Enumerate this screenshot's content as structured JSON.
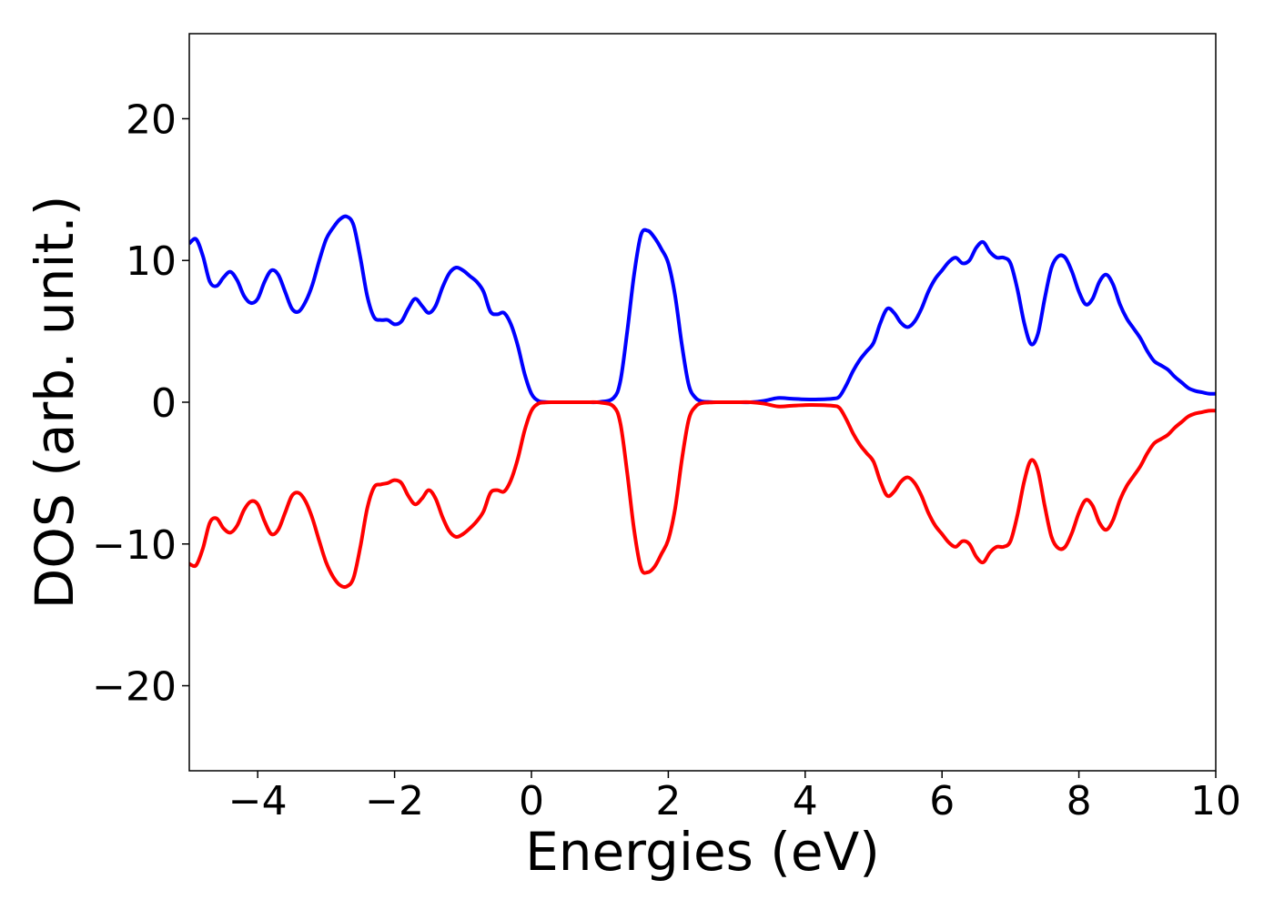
{
  "chart_data": {
    "type": "line",
    "title": "",
    "xlabel": "Energies (eV)",
    "ylabel": "DOS (arb. unit.)",
    "xlim": [
      -5,
      10
    ],
    "ylim": [
      -26,
      26
    ],
    "xticks": [
      -4,
      -2,
      0,
      2,
      4,
      6,
      8,
      10
    ],
    "xtick_labels": [
      "−4",
      "−2",
      "0",
      "2",
      "4",
      "6",
      "8",
      "10"
    ],
    "yticks": [
      -20,
      -10,
      0,
      10,
      20
    ],
    "ytick_labels": [
      "−20",
      "−10",
      "0",
      "10",
      "20"
    ],
    "grid": false,
    "legend": "none",
    "series": [
      {
        "color": "#0000ff",
        "x": [
          -5.0,
          -4.9,
          -4.8,
          -4.7,
          -4.6,
          -4.5,
          -4.4,
          -4.3,
          -4.2,
          -4.1,
          -4.0,
          -3.9,
          -3.8,
          -3.7,
          -3.6,
          -3.5,
          -3.4,
          -3.3,
          -3.2,
          -3.1,
          -3.0,
          -2.9,
          -2.8,
          -2.7,
          -2.6,
          -2.5,
          -2.4,
          -2.3,
          -2.2,
          -2.1,
          -2.0,
          -1.9,
          -1.8,
          -1.7,
          -1.6,
          -1.5,
          -1.4,
          -1.3,
          -1.2,
          -1.1,
          -1.0,
          -0.9,
          -0.8,
          -0.7,
          -0.6,
          -0.5,
          -0.4,
          -0.3,
          -0.2,
          -0.1,
          0.0,
          0.1,
          0.2,
          0.3,
          0.4,
          0.5,
          0.6,
          0.8,
          1.0,
          1.2,
          1.3,
          1.4,
          1.5,
          1.6,
          1.7,
          1.8,
          1.9,
          2.0,
          2.1,
          2.2,
          2.3,
          2.4,
          2.5,
          2.6,
          2.7,
          2.8,
          2.9,
          3.0,
          3.2,
          3.4,
          3.6,
          3.8,
          4.0,
          4.2,
          4.4,
          4.5,
          4.6,
          4.7,
          4.8,
          4.9,
          5.0,
          5.1,
          5.2,
          5.3,
          5.4,
          5.5,
          5.6,
          5.7,
          5.8,
          5.9,
          6.0,
          6.1,
          6.2,
          6.3,
          6.4,
          6.5,
          6.6,
          6.7,
          6.8,
          6.9,
          7.0,
          7.1,
          7.2,
          7.3,
          7.4,
          7.5,
          7.6,
          7.7,
          7.8,
          7.9,
          8.0,
          8.1,
          8.2,
          8.3,
          8.4,
          8.5,
          8.6,
          8.7,
          8.8,
          8.9,
          9.0,
          9.1,
          9.2,
          9.3,
          9.4,
          9.5,
          9.6,
          9.7,
          9.8,
          9.9,
          10.0
        ],
        "y": [
          11.2,
          11.5,
          10.3,
          8.5,
          8.2,
          8.8,
          9.2,
          8.6,
          7.5,
          7.0,
          7.3,
          8.5,
          9.3,
          9.0,
          7.8,
          6.6,
          6.4,
          7.1,
          8.3,
          10.0,
          11.5,
          12.3,
          12.9,
          13.1,
          12.5,
          10.2,
          7.5,
          6.0,
          5.8,
          5.8,
          5.5,
          5.7,
          6.6,
          7.3,
          6.8,
          6.3,
          6.8,
          8.1,
          9.1,
          9.5,
          9.3,
          8.9,
          8.5,
          7.8,
          6.4,
          6.2,
          6.3,
          5.5,
          4.0,
          2.0,
          0.6,
          0.1,
          0.02,
          0.0,
          0.0,
          0.0,
          0.0,
          0.0,
          0.02,
          0.3,
          1.5,
          5.0,
          9.0,
          11.8,
          12.1,
          11.6,
          10.8,
          9.8,
          7.5,
          4.0,
          1.2,
          0.3,
          0.05,
          0.02,
          0.0,
          0.0,
          0.0,
          0.0,
          0.0,
          0.1,
          0.3,
          0.25,
          0.2,
          0.2,
          0.25,
          0.4,
          1.2,
          2.2,
          3.0,
          3.6,
          4.2,
          5.6,
          6.6,
          6.3,
          5.6,
          5.3,
          5.7,
          6.6,
          7.8,
          8.7,
          9.3,
          9.9,
          10.2,
          9.8,
          10.0,
          10.9,
          11.3,
          10.6,
          10.2,
          10.2,
          9.8,
          8.0,
          5.6,
          4.1,
          4.8,
          7.3,
          9.5,
          10.3,
          10.2,
          9.2,
          7.8,
          6.9,
          7.3,
          8.5,
          9.0,
          8.3,
          6.9,
          5.9,
          5.2,
          4.5,
          3.6,
          2.9,
          2.6,
          2.3,
          1.8,
          1.4,
          1.0,
          0.8,
          0.7,
          0.6,
          0.6
        ]
      },
      {
        "color": "#ff0000",
        "x": [
          -5.0,
          -4.9,
          -4.8,
          -4.7,
          -4.6,
          -4.5,
          -4.4,
          -4.3,
          -4.2,
          -4.1,
          -4.0,
          -3.9,
          -3.8,
          -3.7,
          -3.6,
          -3.5,
          -3.4,
          -3.3,
          -3.2,
          -3.1,
          -3.0,
          -2.9,
          -2.8,
          -2.7,
          -2.6,
          -2.5,
          -2.4,
          -2.3,
          -2.2,
          -2.1,
          -2.0,
          -1.9,
          -1.8,
          -1.7,
          -1.6,
          -1.5,
          -1.4,
          -1.3,
          -1.2,
          -1.1,
          -1.0,
          -0.9,
          -0.8,
          -0.7,
          -0.6,
          -0.5,
          -0.4,
          -0.3,
          -0.2,
          -0.1,
          0.0,
          0.1,
          0.2,
          0.3,
          0.4,
          0.5,
          0.6,
          0.8,
          1.0,
          1.2,
          1.3,
          1.4,
          1.5,
          1.6,
          1.7,
          1.8,
          1.9,
          2.0,
          2.1,
          2.2,
          2.3,
          2.4,
          2.5,
          2.6,
          2.7,
          2.8,
          2.9,
          3.0,
          3.2,
          3.4,
          3.6,
          3.8,
          4.0,
          4.2,
          4.4,
          4.5,
          4.6,
          4.7,
          4.8,
          4.9,
          5.0,
          5.1,
          5.2,
          5.3,
          5.4,
          5.5,
          5.6,
          5.7,
          5.8,
          5.9,
          6.0,
          6.1,
          6.2,
          6.3,
          6.4,
          6.5,
          6.6,
          6.7,
          6.8,
          6.9,
          7.0,
          7.1,
          7.2,
          7.3,
          7.4,
          7.5,
          7.6,
          7.7,
          7.8,
          7.9,
          8.0,
          8.1,
          8.2,
          8.3,
          8.4,
          8.5,
          8.6,
          8.7,
          8.8,
          8.9,
          9.0,
          9.1,
          9.2,
          9.3,
          9.4,
          9.5,
          9.6,
          9.7,
          9.8,
          9.9,
          10.0
        ],
        "y": [
          -11.4,
          -11.5,
          -10.3,
          -8.5,
          -8.2,
          -8.9,
          -9.2,
          -8.7,
          -7.6,
          -7.0,
          -7.2,
          -8.4,
          -9.3,
          -9.0,
          -7.8,
          -6.6,
          -6.4,
          -7.0,
          -8.2,
          -9.8,
          -11.3,
          -12.3,
          -12.9,
          -13.0,
          -12.4,
          -10.2,
          -7.5,
          -6.0,
          -5.8,
          -5.7,
          -5.5,
          -5.7,
          -6.6,
          -7.2,
          -6.8,
          -6.2,
          -6.8,
          -8.1,
          -9.1,
          -9.5,
          -9.3,
          -8.9,
          -8.4,
          -7.7,
          -6.4,
          -6.2,
          -6.3,
          -5.5,
          -4.0,
          -2.0,
          -0.6,
          -0.1,
          -0.02,
          0.0,
          0.0,
          0.0,
          0.0,
          0.0,
          -0.02,
          -0.3,
          -1.5,
          -5.0,
          -9.0,
          -11.7,
          -12.0,
          -11.6,
          -10.7,
          -9.7,
          -7.5,
          -4.0,
          -1.2,
          -0.3,
          -0.05,
          -0.02,
          0.0,
          0.0,
          0.0,
          0.0,
          0.0,
          -0.1,
          -0.3,
          -0.25,
          -0.2,
          -0.2,
          -0.25,
          -0.4,
          -1.2,
          -2.2,
          -3.0,
          -3.6,
          -4.2,
          -5.6,
          -6.6,
          -6.3,
          -5.6,
          -5.3,
          -5.7,
          -6.6,
          -7.8,
          -8.7,
          -9.3,
          -9.9,
          -10.2,
          -9.8,
          -10.0,
          -10.9,
          -11.3,
          -10.6,
          -10.2,
          -10.2,
          -9.8,
          -8.0,
          -5.6,
          -4.1,
          -4.8,
          -7.3,
          -9.5,
          -10.3,
          -10.2,
          -9.2,
          -7.8,
          -6.9,
          -7.3,
          -8.5,
          -9.0,
          -8.3,
          -6.9,
          -5.9,
          -5.2,
          -4.5,
          -3.6,
          -2.9,
          -2.6,
          -2.3,
          -1.8,
          -1.4,
          -1.0,
          -0.8,
          -0.7,
          -0.6,
          -0.6
        ]
      }
    ]
  }
}
